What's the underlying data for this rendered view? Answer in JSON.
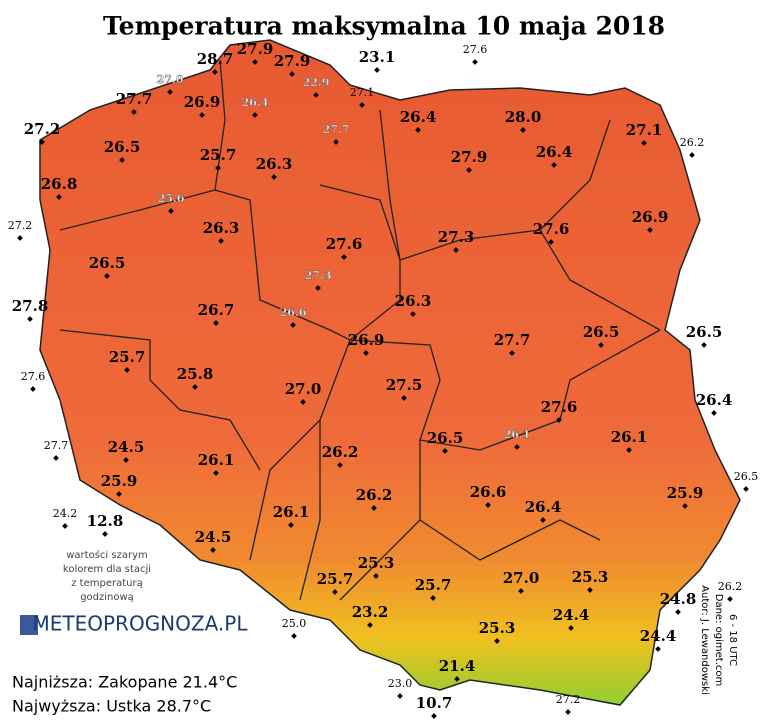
{
  "title": "Temperatura maksymalna 10 maja 2018",
  "stations": [
    "28.7",
    "27.9",
    "27.9",
    "23.1",
    "27.7",
    "26.9",
    "27.2",
    "26.4",
    "28.0",
    "27.1",
    "26.5",
    "25.7",
    "26.3",
    "27.9",
    "26.4",
    "26.8",
    "26.3",
    "27.6",
    "27.3",
    "27.6",
    "26.9",
    "26.5",
    "27.8",
    "26.7",
    "26.3",
    "26.9",
    "27.7",
    "26.5",
    "26.5",
    "25.7",
    "25.8",
    "27.0",
    "27.5",
    "26.4",
    "27.6",
    "24.5",
    "26.1",
    "26.2",
    "26.5",
    "26.1",
    "25.9",
    "12.8",
    "26.2",
    "26.6",
    "26.4",
    "25.9",
    "26.1",
    "24.5",
    "25.3",
    "25.7",
    "25.7",
    "27.0",
    "25.3",
    "24.8",
    "23.2",
    "24.4",
    "25.3",
    "24.4",
    "21.4",
    "10.7"
  ],
  "small_stations": [
    "27.6",
    "27.1",
    "26.2",
    "27.2",
    "27.6",
    "27.7",
    "24.2",
    "26.5",
    "26.2",
    "25.0",
    "23.0",
    "27.2"
  ],
  "hourly_stations": [
    "27.0",
    "22.9",
    "26.4",
    "27.7",
    "25.6",
    "27.3",
    "26.6",
    "26.1"
  ],
  "legend_note": [
    "wartości szarym",
    "kolorem dla stacji",
    "z temperaturą",
    "godzinową"
  ],
  "logo": "METEOPROGNOZA.PL",
  "lowest": "Najniższa: Zakopane 21.4°C",
  "highest": "Najwyższa: Ustka 28.7°C",
  "credits": [
    "Autor: J. Lewandowski",
    "Dane: ogimet.com",
    "6 - 18 UTC"
  ]
}
